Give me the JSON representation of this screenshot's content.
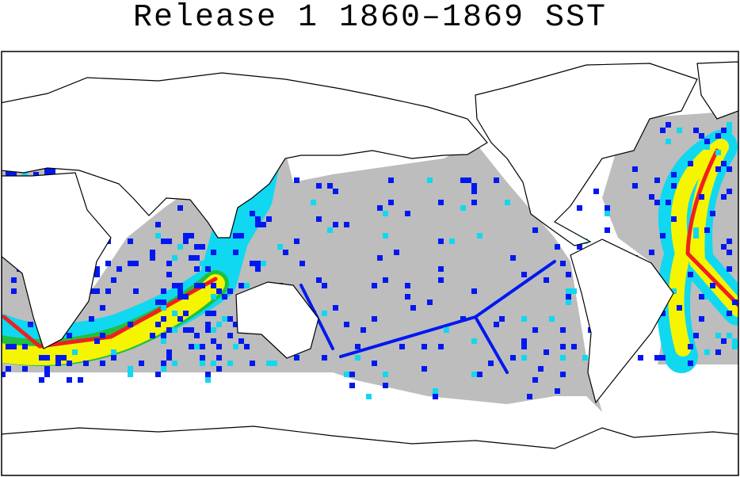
{
  "title": "Release 1 1860–1869 SST"
}
